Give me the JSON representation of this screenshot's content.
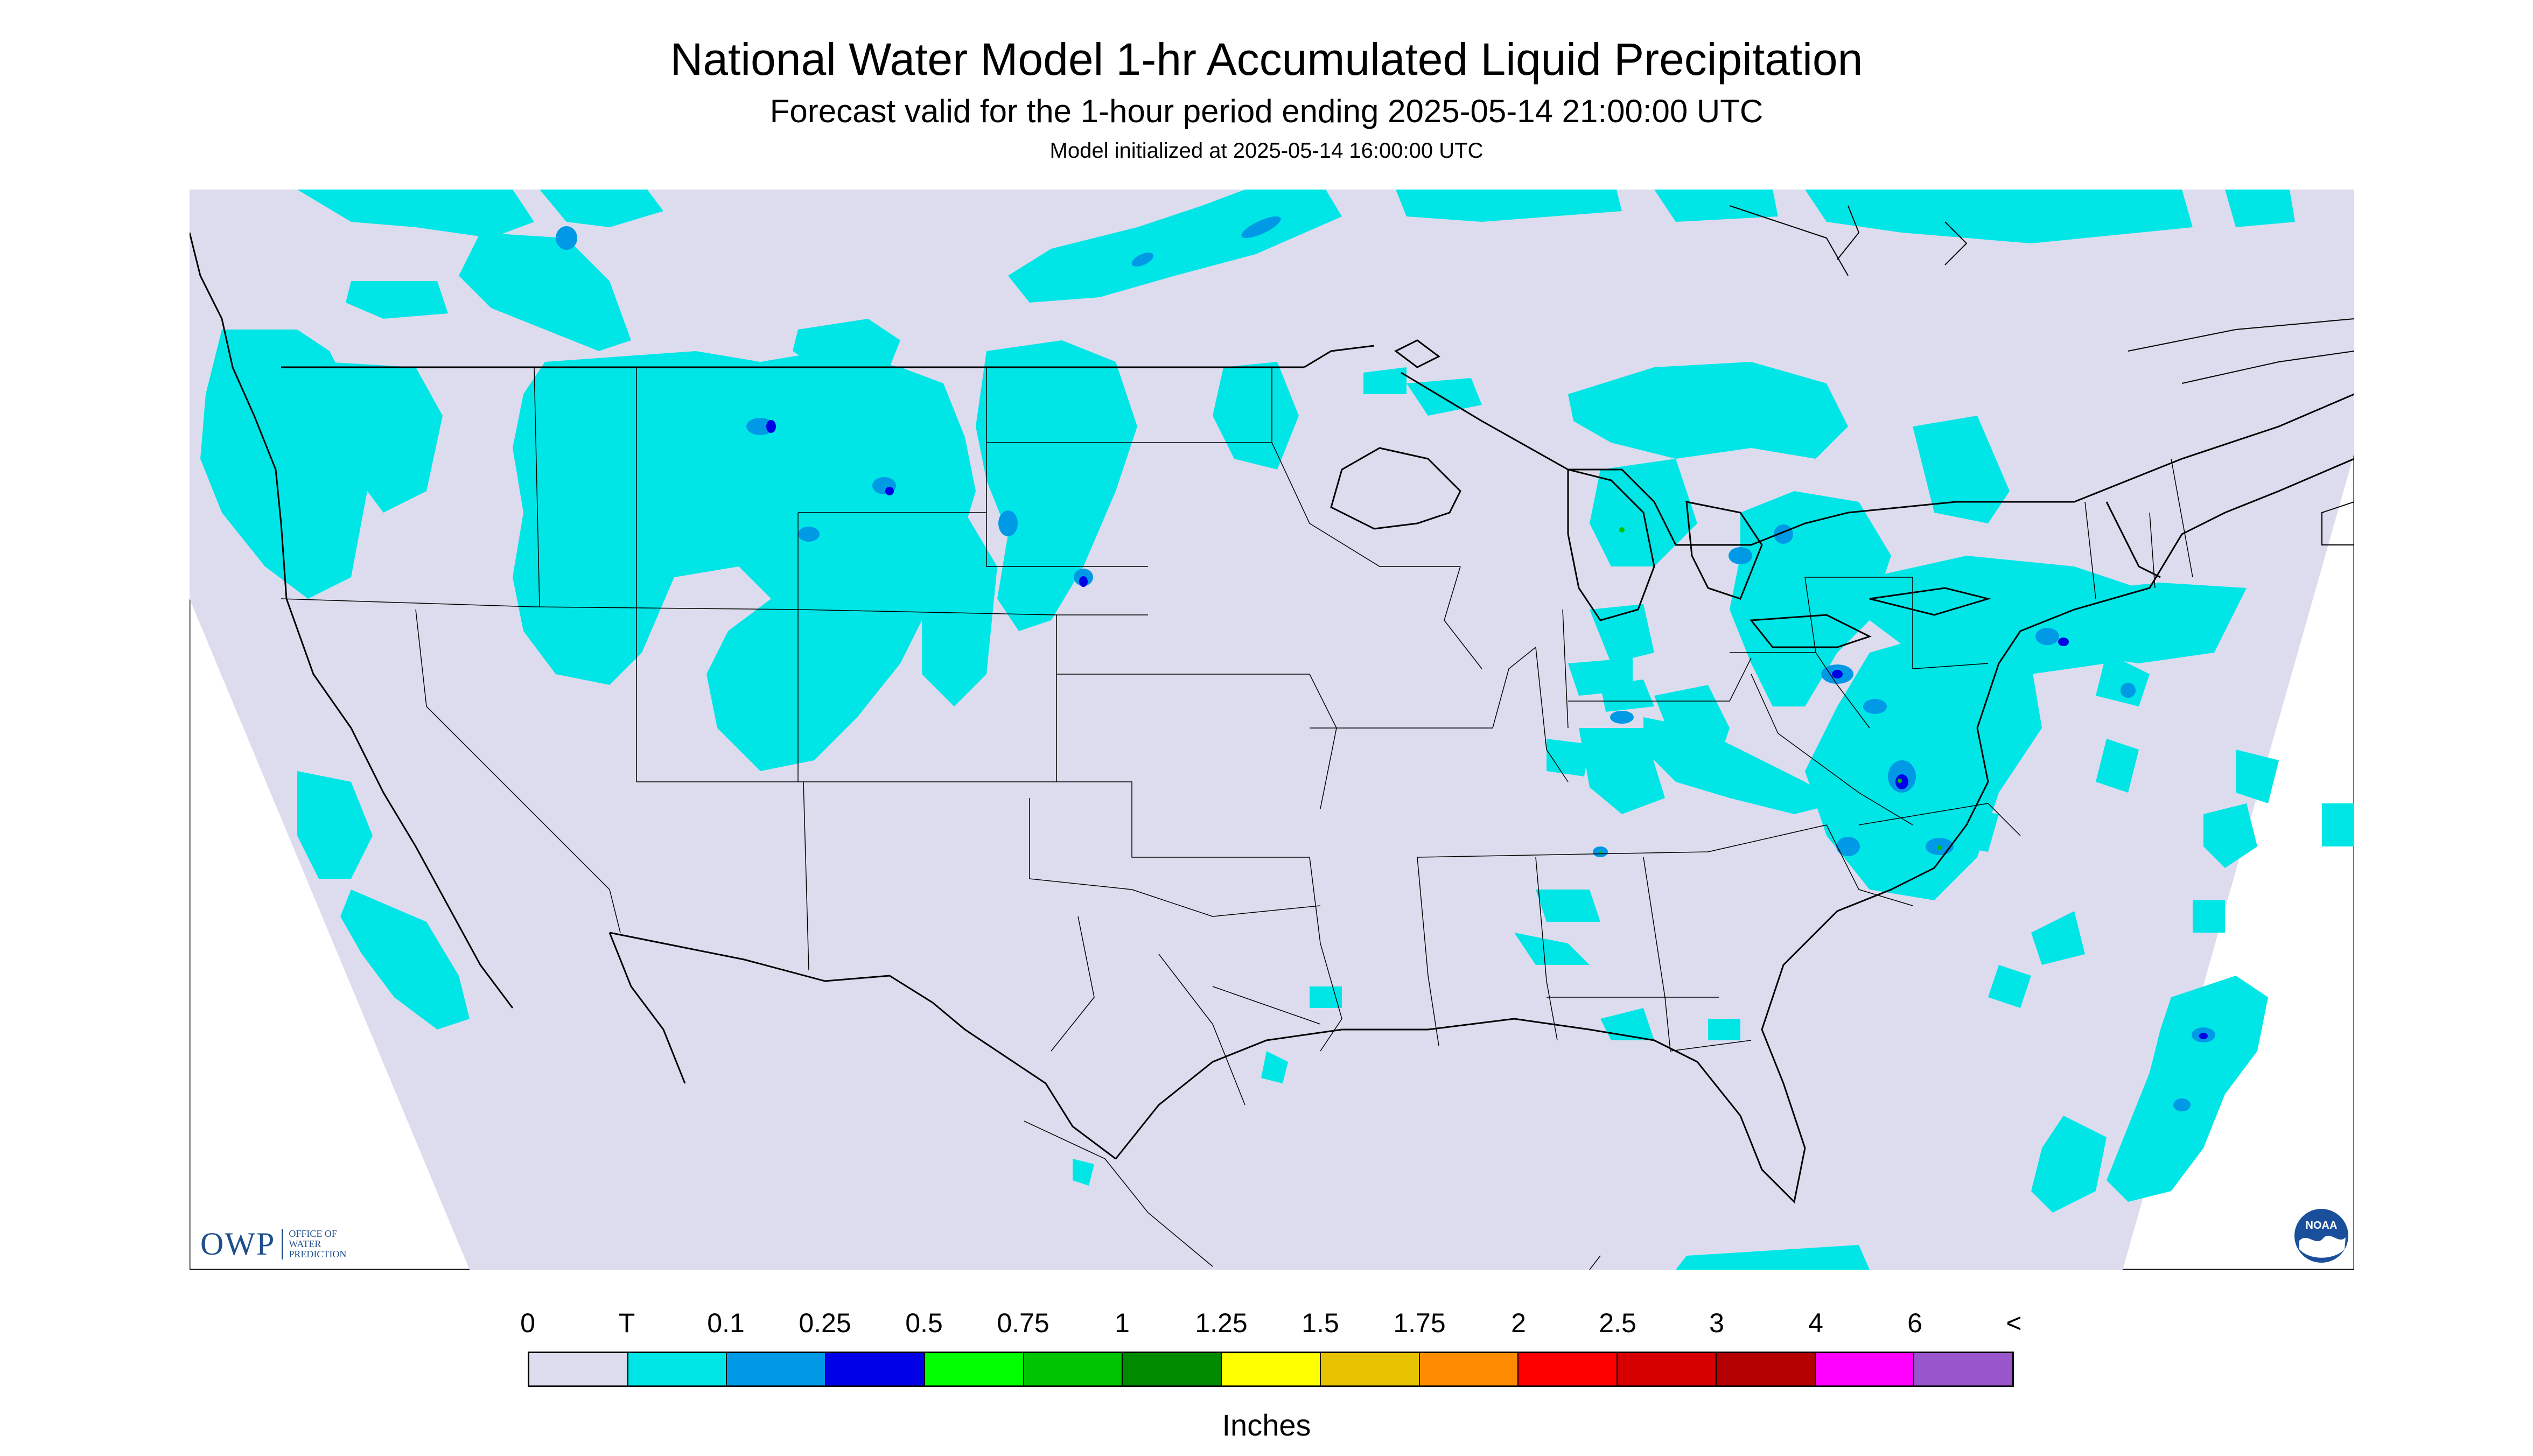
{
  "title": "National Water Model 1-hr Accumulated Liquid Precipitation",
  "subtitle": "Forecast valid for the 1-hour period ending 2025-05-14 21:00:00 UTC",
  "init_text": "Model initialized at 2025-05-14 16:00:00 UTC",
  "legend": {
    "labels": [
      "0",
      "T",
      "0.1",
      "0.25",
      "0.5",
      "0.75",
      "1",
      "1.25",
      "1.5",
      "1.75",
      "2",
      "2.5",
      "3",
      "4",
      "6",
      "<"
    ],
    "colors": [
      "#dcdcee",
      "#00e6e6",
      "#0099e6",
      "#0000e6",
      "#00ff00",
      "#00c400",
      "#008a00",
      "#ffff00",
      "#e6c200",
      "#ff8c00",
      "#ff0000",
      "#d60000",
      "#b40000",
      "#ff00ff",
      "#9955cc"
    ],
    "units": "Inches"
  },
  "logos": {
    "owp_mark": "OWP",
    "owp_text": "OFFICE OF WATER PREDICTION",
    "noaa": "NOAA"
  },
  "map": {
    "background_color": "#dcdcee",
    "precip_color_light": "#00e6e6",
    "precip_color_mid": "#0099e6",
    "precip_color_heavy": "#0000e6",
    "boundary_color": "#000000"
  }
}
